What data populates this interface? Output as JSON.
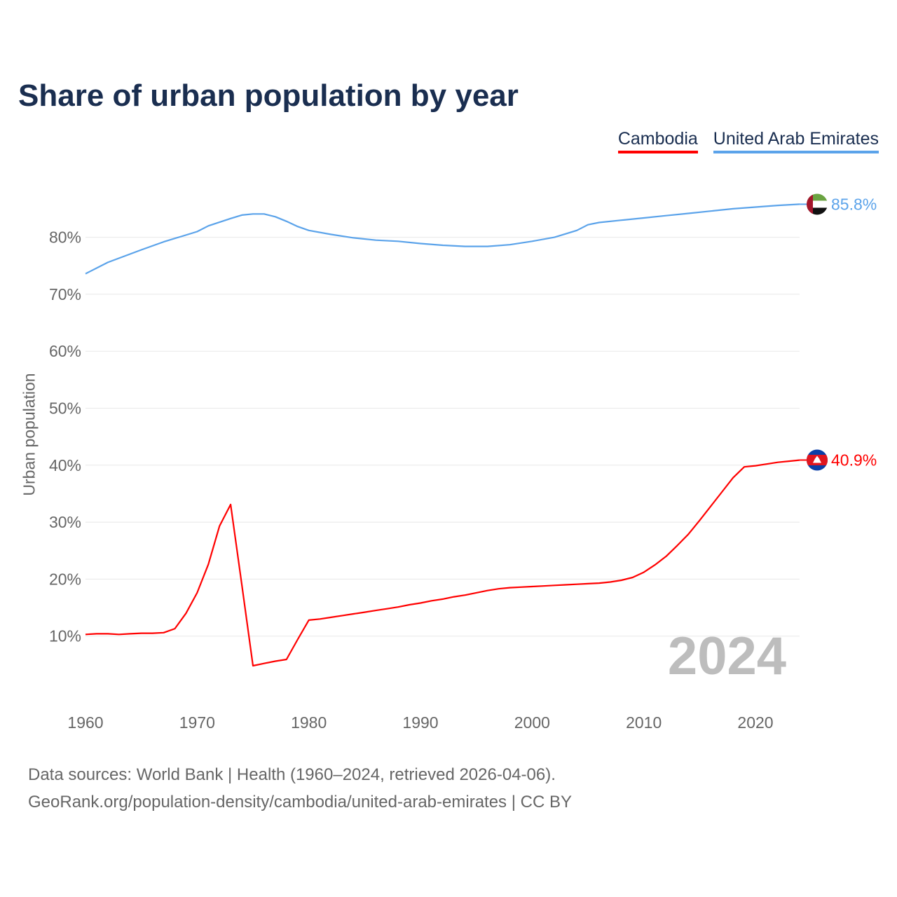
{
  "chart_data": {
    "type": "line",
    "title": "Share of urban population by year",
    "ylabel": "Urban population",
    "xlabel": "",
    "xlim": [
      1960,
      2024
    ],
    "ylim": [
      0,
      90
    ],
    "x_ticks": [
      1960,
      1970,
      1980,
      1990,
      2000,
      2010,
      2020
    ],
    "y_ticks": [
      10,
      20,
      30,
      40,
      50,
      60,
      70,
      80
    ],
    "y_tick_labels": [
      "10%",
      "20%",
      "30%",
      "40%",
      "50%",
      "60%",
      "70%",
      "80%"
    ],
    "grid": true,
    "legend_position": "top-right",
    "current_year": "2024",
    "series": [
      {
        "name": "Cambodia",
        "color": "#ff0000",
        "end_label": "40.9%",
        "x": [
          1960,
          1961,
          1962,
          1963,
          1964,
          1965,
          1966,
          1967,
          1968,
          1969,
          1970,
          1971,
          1972,
          1973,
          1974,
          1975,
          1976,
          1977,
          1978,
          1979,
          1980,
          1981,
          1982,
          1983,
          1984,
          1985,
          1986,
          1987,
          1988,
          1989,
          1990,
          1991,
          1992,
          1993,
          1994,
          1995,
          1996,
          1997,
          1998,
          1999,
          2000,
          2001,
          2002,
          2003,
          2004,
          2005,
          2006,
          2007,
          2008,
          2009,
          2010,
          2011,
          2012,
          2013,
          2014,
          2015,
          2016,
          2017,
          2018,
          2019,
          2020,
          2021,
          2022,
          2023,
          2024
        ],
        "values": [
          10.3,
          10.4,
          10.4,
          10.3,
          10.4,
          10.5,
          10.5,
          10.6,
          11.3,
          14.0,
          17.6,
          22.6,
          29.3,
          33.1,
          19.0,
          4.8,
          5.2,
          5.6,
          5.9,
          9.4,
          12.8,
          13.0,
          13.3,
          13.6,
          13.9,
          14.2,
          14.5,
          14.8,
          15.1,
          15.5,
          15.8,
          16.2,
          16.5,
          16.9,
          17.2,
          17.6,
          18.0,
          18.3,
          18.5,
          18.6,
          18.7,
          18.8,
          18.9,
          19.0,
          19.1,
          19.2,
          19.3,
          19.5,
          19.8,
          20.3,
          21.2,
          22.5,
          24.0,
          25.9,
          27.9,
          30.3,
          32.8,
          35.3,
          37.8,
          39.7,
          39.9,
          40.2,
          40.5,
          40.7,
          40.9
        ]
      },
      {
        "name": "United Arab Emirates",
        "color": "#5ba3ea",
        "end_label": "85.8%",
        "x": [
          1960,
          1962,
          1965,
          1967,
          1970,
          1971,
          1973,
          1974,
          1975,
          1976,
          1977,
          1978,
          1979,
          1980,
          1982,
          1984,
          1986,
          1988,
          1990,
          1992,
          1994,
          1996,
          1998,
          2000,
          2002,
          2004,
          2005,
          2006,
          2008,
          2010,
          2012,
          2014,
          2016,
          2018,
          2020,
          2022,
          2024
        ],
        "values": [
          73.6,
          75.6,
          77.8,
          79.2,
          81.0,
          82.0,
          83.3,
          83.9,
          84.1,
          84.1,
          83.6,
          82.8,
          81.9,
          81.2,
          80.5,
          79.9,
          79.5,
          79.3,
          78.9,
          78.6,
          78.4,
          78.4,
          78.7,
          79.3,
          80.0,
          81.2,
          82.2,
          82.6,
          83.0,
          83.4,
          83.8,
          84.2,
          84.6,
          85.0,
          85.3,
          85.6,
          85.8
        ]
      }
    ]
  },
  "footer": {
    "line1": "Data sources: World Bank | Health (1960–2024, retrieved 2026-04-06).",
    "line2": "GeoRank.org/population-density/cambodia/united-arab-emirates | CC BY"
  }
}
